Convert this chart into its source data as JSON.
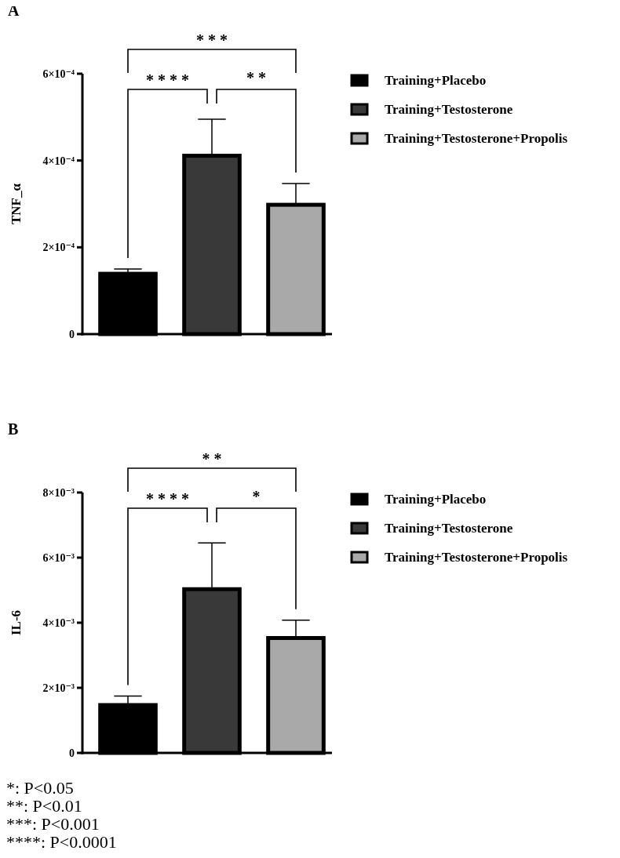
{
  "chart_data": [
    {
      "type": "bar",
      "title": "A",
      "ylabel": "TNF_α",
      "categories": [
        null,
        null,
        null
      ],
      "series": [
        {
          "name": "Training+Placebo",
          "color": "#000000",
          "values": [
            0.000139,
            null,
            null
          ],
          "errors": [
            1.1e-05,
            null,
            null
          ]
        },
        {
          "name": "Training+Testosterone",
          "color": "#393939",
          "values": [
            null,
            0.000411,
            null
          ],
          "errors": [
            null,
            8.4e-05,
            null
          ]
        },
        {
          "name": "Training+Testosterone+Propolis",
          "color": "#a9a9a9",
          "values": [
            null,
            null,
            0.000298
          ],
          "errors": [
            null,
            null,
            4.9e-05
          ]
        }
      ],
      "ylim": [
        0,
        0.0006
      ],
      "yticks": [
        0,
        {
          "value": 0.0002,
          "label": "2×10⁻⁴"
        },
        {
          "value": 0.0004,
          "label": "4×10⁻⁴"
        },
        {
          "value": 0.0006,
          "label": "6×10⁻⁴"
        }
      ],
      "legend": "right",
      "annotations": [
        "* * *",
        "* * * *",
        "* *"
      ]
    },
    {
      "type": "bar",
      "title": "B",
      "ylabel": "IL-6",
      "categories": [
        null,
        null,
        null
      ],
      "series": [
        {
          "name": "Training+Placebo",
          "color": "#000000",
          "values": [
            0.00147,
            null,
            null
          ],
          "errors": [
            0.00028,
            null,
            null
          ]
        },
        {
          "name": "Training+Testosterone",
          "color": "#393939",
          "values": [
            null,
            0.00503,
            null
          ],
          "errors": [
            null,
            0.00142,
            null
          ]
        },
        {
          "name": "Training+Testosterone+Propolis",
          "color": "#a9a9a9",
          "values": [
            null,
            null,
            0.00353
          ],
          "errors": [
            null,
            null,
            0.00055
          ]
        }
      ],
      "ylim": [
        0,
        0.008
      ],
      "yticks": [
        0,
        {
          "value": 0.002,
          "label": "2×10⁻³"
        },
        {
          "value": 0.004,
          "label": "4×10⁻³"
        },
        {
          "value": 0.006,
          "label": "6×10⁻³"
        },
        {
          "value": 0.008,
          "label": "8×10⁻³"
        }
      ],
      "legend": "right",
      "annotations": [
        "* *",
        "* * * *",
        "*",
        "*: P<0.05",
        "**: P<0.01",
        "***: P<0.001",
        "****: P<0.0001"
      ]
    }
  ]
}
